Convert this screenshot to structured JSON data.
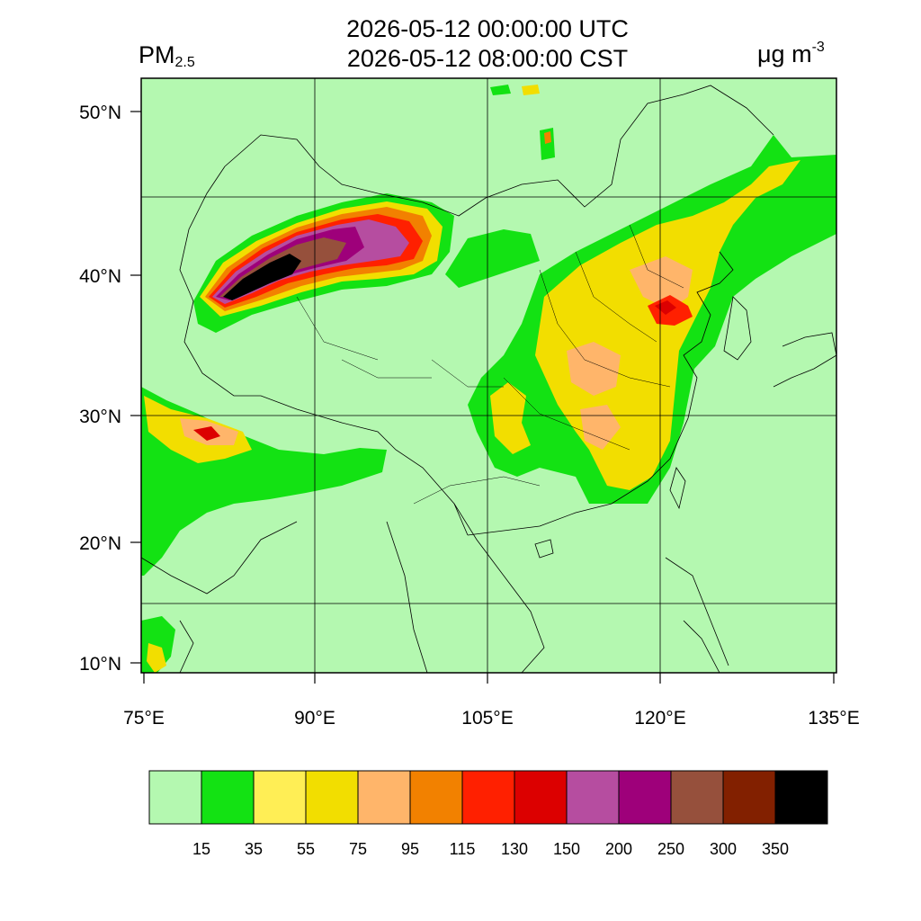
{
  "header": {
    "variable_main": "PM",
    "variable_sub": "2.5",
    "title_utc": "2026-05-12 00:00:00 UTC",
    "title_cst": "2026-05-12 08:00:00 CST",
    "unit_main": "μg m",
    "unit_sup": "-3"
  },
  "map": {
    "lat_labels": [
      {
        "lat": 50,
        "text": "50°N"
      },
      {
        "lat": 40,
        "text": "40°N"
      },
      {
        "lat": 30,
        "text": "30°N"
      },
      {
        "lat": 20,
        "text": "20°N"
      },
      {
        "lat": 10,
        "text": "10°N"
      }
    ],
    "lon_labels": [
      {
        "lon": 75,
        "text": "75°E"
      },
      {
        "lon": 90,
        "text": "90°E"
      },
      {
        "lon": 105,
        "text": "105°E"
      },
      {
        "lon": 120,
        "text": "120°E"
      },
      {
        "lon": 135,
        "text": "135°E"
      }
    ],
    "background_color": "#b4f8b0",
    "boundary_color": "#000000"
  },
  "colorbar": {
    "colors": [
      "#b4f8b0",
      "#13e213",
      "#ffee55",
      "#f2de00",
      "#ffb56a",
      "#f28100",
      "#ff2000",
      "#dc0000",
      "#b64da0",
      "#9e007a",
      "#96503c",
      "#822000",
      "#000000"
    ],
    "labels": [
      "15",
      "35",
      "55",
      "75",
      "95",
      "115",
      "130",
      "150",
      "200",
      "250",
      "300",
      "350"
    ]
  }
}
